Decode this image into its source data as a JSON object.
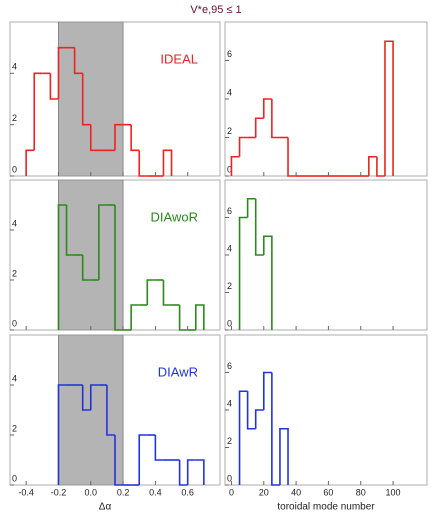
{
  "title": "V*e,95 ≤ 1",
  "chart_data": [
    {
      "type": "histogram",
      "annotation": "IDEAL",
      "color": "#ee2222",
      "bins": [
        -0.4,
        -0.35,
        -0.3,
        -0.25,
        -0.2,
        -0.15,
        -0.1,
        -0.05,
        0,
        0.05,
        0.1,
        0.15,
        0.2,
        0.25,
        0.3,
        0.35,
        0.4,
        0.45,
        0.5
      ],
      "values": [
        1,
        4,
        4,
        3,
        5,
        5,
        4,
        2,
        1,
        1,
        1,
        2,
        2,
        1,
        0,
        0,
        0,
        1
      ],
      "xlim": [
        -0.5,
        0.8
      ],
      "ylim": [
        0,
        6
      ],
      "xticks": [
        -0.4,
        -0.2,
        {
          "value": 0,
          "label": "0.0"
        },
        0.2,
        0.4,
        0.6
      ],
      "yticks": [
        0,
        2,
        4
      ],
      "shade": [
        -0.2,
        0.2
      ]
    },
    {
      "type": "histogram",
      "color": "#ee2222",
      "bins": [
        0,
        5,
        10,
        15,
        20,
        25,
        30,
        35,
        40,
        45,
        50,
        55,
        60,
        65,
        70,
        75,
        80,
        85,
        90,
        95,
        100
      ],
      "values": [
        1,
        2,
        2,
        3,
        4,
        2,
        2,
        0,
        0,
        0,
        0,
        0,
        0,
        0,
        0,
        0,
        0,
        1,
        0,
        7
      ],
      "xlim": [
        -4,
        121
      ],
      "ylim": [
        0,
        8
      ],
      "xticks": [
        0,
        20,
        40,
        60,
        80,
        100
      ],
      "yticks": [
        0,
        2,
        4,
        6
      ]
    },
    {
      "type": "histogram",
      "annotation": "DIAwoR",
      "color": "#2a8a1a",
      "bins": [
        -0.2,
        -0.15,
        -0.1,
        -0.05,
        0,
        0.05,
        0.1,
        0.15,
        0.2,
        0.25,
        0.3,
        0.35,
        0.4,
        0.45,
        0.5,
        0.55,
        0.6,
        0.65,
        0.7
      ],
      "values": [
        5,
        3,
        3,
        2,
        2,
        5,
        5,
        0,
        0,
        1,
        1,
        2,
        2,
        1,
        1,
        0,
        0,
        1
      ],
      "xlim": [
        -0.5,
        0.8
      ],
      "ylim": [
        0,
        6
      ],
      "xticks": [
        -0.4,
        -0.2,
        {
          "value": 0,
          "label": "0.0"
        },
        0.2,
        0.4,
        0.6
      ],
      "yticks": [
        0,
        2,
        4
      ],
      "shade": [
        -0.2,
        0.2
      ]
    },
    {
      "type": "histogram",
      "color": "#2a8a1a",
      "bins": [
        5,
        10,
        15,
        20,
        25
      ],
      "values": [
        6,
        7,
        4,
        5
      ],
      "xlim": [
        -4,
        121
      ],
      "ylim": [
        0,
        8
      ],
      "xticks": [
        0,
        20,
        40,
        60,
        80,
        100
      ],
      "yticks": [
        0,
        2,
        4,
        6
      ]
    },
    {
      "type": "histogram",
      "annotation": "DIAwR",
      "color": "#2233dd",
      "bins": [
        -0.2,
        -0.15,
        -0.1,
        -0.05,
        0,
        0.05,
        0.1,
        0.15,
        0.2,
        0.25,
        0.3,
        0.35,
        0.4,
        0.45,
        0.5,
        0.55,
        0.6,
        0.65,
        0.7
      ],
      "values": [
        4,
        4,
        4,
        3,
        4,
        4,
        2,
        0,
        0,
        0,
        2,
        2,
        1,
        1,
        1,
        0,
        1,
        1
      ],
      "xlim": [
        -0.5,
        0.8
      ],
      "ylim": [
        0,
        6
      ],
      "xticks": [
        -0.4,
        -0.2,
        {
          "value": 0,
          "label": "0.0"
        },
        0.2,
        0.4,
        0.6
      ],
      "yticks": [
        0,
        2,
        4
      ],
      "shade": [
        -0.2,
        0.2
      ],
      "xlabel": "Δα"
    },
    {
      "type": "histogram",
      "color": "#2233dd",
      "bins": [
        5,
        10,
        15,
        20,
        25,
        30,
        35
      ],
      "values": [
        5,
        3,
        4,
        6,
        0,
        3
      ],
      "xlim": [
        -4,
        121
      ],
      "ylim": [
        0,
        8
      ],
      "xticks": [
        0,
        20,
        40,
        60,
        80,
        100
      ],
      "yticks": [
        0,
        2,
        4,
        6
      ],
      "xlabel": "toroidal mode number"
    }
  ]
}
